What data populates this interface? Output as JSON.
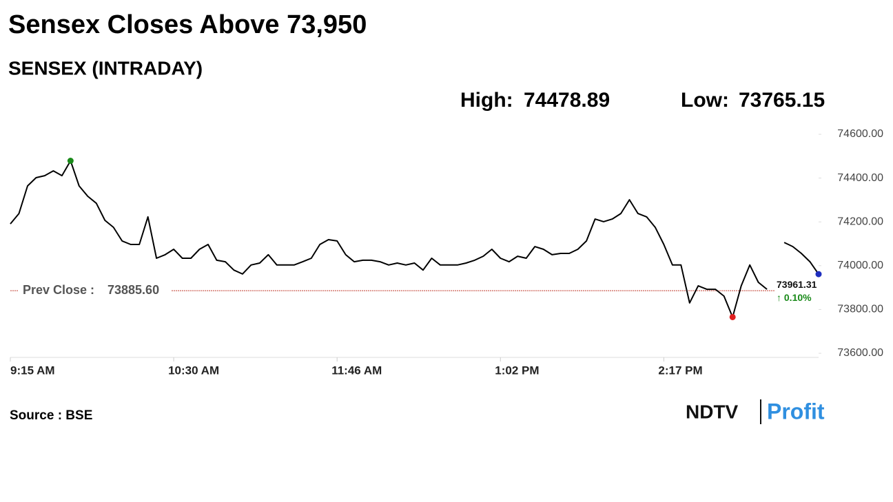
{
  "chart_data": {
    "type": "line",
    "title": "Sensex Closes Above 73,950",
    "subtitle": "SENSEX (INTRADAY)",
    "high_label": "High:",
    "high": 74478.89,
    "low_label": "Low:",
    "low": 73765.15,
    "prev_close_label": "Prev Close :",
    "prev_close": {
      "value": 73885.6,
      "label": "73885.60"
    },
    "change": {
      "value": 0.1,
      "label": "↑ 0.10%"
    },
    "source": "Source : BSE",
    "brand": [
      "NDTV",
      "Profit"
    ],
    "categories": [
      "9:15 AM",
      null,
      null,
      null,
      null,
      null,
      null,
      null,
      null,
      null,
      null,
      null,
      null,
      null,
      null,
      null,
      null,
      null,
      null,
      "10:30 AM",
      null,
      null,
      null,
      null,
      null,
      null,
      null,
      null,
      null,
      null,
      null,
      null,
      null,
      null,
      null,
      null,
      null,
      null,
      "11:46 AM",
      null,
      null,
      null,
      null,
      null,
      null,
      null,
      null,
      null,
      null,
      null,
      null,
      null,
      null,
      null,
      null,
      null,
      null,
      "1:02 PM",
      null,
      null,
      null,
      null,
      null,
      null,
      null,
      null,
      null,
      null,
      null,
      null,
      null,
      null,
      null,
      null,
      null,
      null,
      "2:17 PM",
      null,
      null,
      null,
      null,
      null,
      null,
      null,
      null,
      null,
      null,
      null,
      null,
      null,
      null,
      null,
      null,
      null,
      null
    ],
    "series": [
      {
        "name": "SENSEX",
        "color": "#000000",
        "values": [
          74191,
          74238,
          74364,
          74402,
          74411,
          74433,
          74411,
          74478.89,
          74364,
          74317,
          74285,
          74207,
          74175,
          74113,
          74097,
          74097,
          74223,
          74034,
          74050,
          74075,
          74034,
          74034,
          74075,
          74097,
          74025,
          74018,
          73980,
          73962,
          74003,
          74012,
          74050,
          74003,
          74003,
          74003,
          74018,
          74034,
          74097,
          74119,
          74113,
          74050,
          74018,
          74025,
          74025,
          74018,
          74003,
          74012,
          74003,
          74012,
          73980,
          74034,
          74003,
          74003,
          74003,
          74012,
          74025,
          74043,
          74075,
          74034,
          74018,
          74043,
          74034,
          74087,
          74075,
          74050,
          74056,
          74056,
          74075,
          74113,
          74213,
          74201,
          74213,
          74238,
          74301,
          74238,
          74223,
          74175,
          74097,
          74003,
          74003,
          73830,
          73908,
          73892,
          73892,
          73861,
          73765.15,
          73908,
          74003,
          73924,
          73892,
          null,
          74106,
          74087,
          74056,
          74018,
          73961.31
        ]
      }
    ],
    "ylim": [
      73600,
      74600
    ],
    "yticks": [
      {
        "value": 73600,
        "label": "73600.00"
      },
      {
        "value": 73800,
        "label": "73800.00"
      },
      {
        "value": 74000,
        "label": "74000.00"
      },
      {
        "value": 74200,
        "label": "74200.00"
      },
      {
        "value": 74400,
        "label": "74400.00"
      },
      {
        "value": 74600,
        "label": "74600.00"
      }
    ],
    "high_color": "#1a8a1a",
    "low_color": "#e02020",
    "last_color": "#1f2fbf",
    "prev_close_color": "#c0392b",
    "change_color": "#1a8a1a"
  }
}
